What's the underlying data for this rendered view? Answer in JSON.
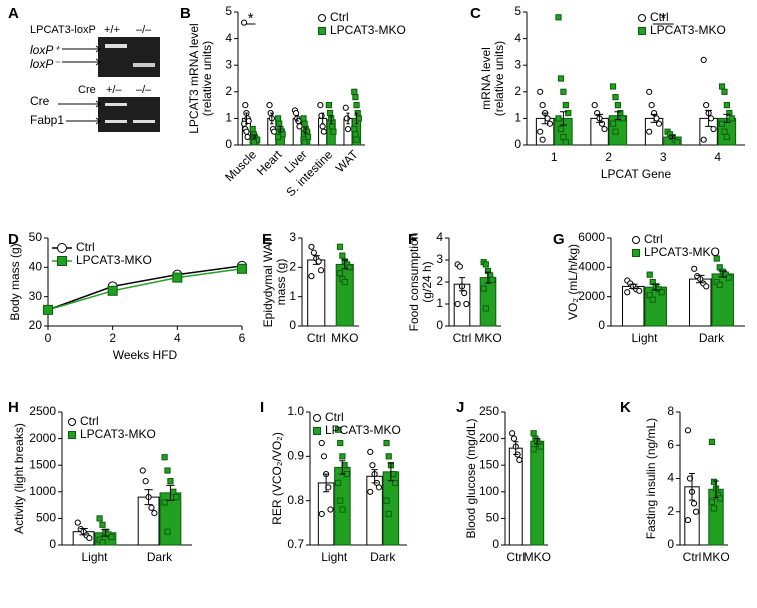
{
  "gel": {
    "label": "A",
    "header1": "LPCAT3-loxP",
    "lanes1": [
      "+/+",
      "–/–"
    ],
    "bands1": [
      "loxP⁺",
      "loxP⁻"
    ],
    "header2": "Cre",
    "lanes2": [
      "+/–",
      "–/–"
    ],
    "bands2": [
      "Cre",
      "Fabp1"
    ]
  },
  "chart_data": [
    {
      "type": "bar",
      "label": "B",
      "ylabel": [
        "LPCAT3 mRNA level",
        "(relative units)"
      ],
      "categories": [
        "Muscle",
        "Heart",
        "Liver",
        "S. intestine",
        "WAT"
      ],
      "xtick_rotation": 45,
      "ylim": [
        0,
        5
      ],
      "yticks": [
        0,
        1,
        2,
        3,
        4,
        5
      ],
      "legend": "upper right",
      "annotations": [
        {
          "text": "*",
          "category": 0
        }
      ],
      "series": [
        {
          "name": "Ctrl",
          "color": "#ffffff",
          "marker": "circle",
          "values": [
            1.0,
            1.0,
            1.0,
            1.0,
            1.0
          ],
          "errors": [
            0.2,
            0.2,
            0.1,
            0.2,
            0.2
          ],
          "points": [
            [
              4.6,
              1.5,
              1.2,
              1.0,
              0.9,
              0.8,
              0.6,
              0.5,
              0.3
            ],
            [
              1.5,
              1.2,
              1.0,
              0.6,
              0.5
            ],
            [
              1.3,
              1.2,
              1.0,
              0.9,
              0.7
            ],
            [
              1.5,
              1.1,
              0.7,
              0.5
            ],
            [
              1.4,
              1.0,
              0.6
            ]
          ]
        },
        {
          "name": "LPCAT3-MKO",
          "color": "#22a022",
          "marker": "square",
          "values": [
            0.3,
            0.6,
            0.55,
            0.95,
            1.0
          ],
          "errors": [
            0.05,
            0.1,
            0.1,
            0.15,
            0.2
          ],
          "points": [
            [
              0.6,
              0.4,
              0.3,
              0.2,
              0.2,
              0.1,
              0.1
            ],
            [
              1.0,
              0.8,
              0.6,
              0.5,
              0.4,
              0.3
            ],
            [
              1.0,
              0.8,
              0.6,
              0.5,
              0.3,
              0.2,
              0.1
            ],
            [
              1.5,
              1.2,
              1.0,
              0.7,
              0.5
            ],
            [
              2.0,
              1.8,
              1.5,
              1.2,
              1.0,
              0.6,
              0.4,
              0.2
            ]
          ]
        }
      ]
    },
    {
      "type": "bar",
      "label": "C",
      "ylabel": [
        "mRNA level",
        "(relative units)"
      ],
      "xlabel": "LPCAT Gene",
      "categories": [
        "1",
        "2",
        "3",
        "4"
      ],
      "ylim": [
        0,
        5
      ],
      "yticks": [
        0,
        1,
        2,
        3,
        4,
        5
      ],
      "legend": "upper right",
      "annotations": [
        {
          "text": "*",
          "category": 2
        }
      ],
      "series": [
        {
          "name": "Ctrl",
          "color": "#ffffff",
          "marker": "circle",
          "values": [
            1.0,
            1.0,
            1.0,
            1.0
          ],
          "errors": [
            0.2,
            0.15,
            0.15,
            0.3
          ],
          "points": [
            [
              2.0,
              1.5,
              1.2,
              1.0,
              0.8,
              0.5,
              0.2
            ],
            [
              1.5,
              1.2,
              1.0,
              0.8,
              0.6
            ],
            [
              2.0,
              1.5,
              1.2,
              1.0,
              0.8,
              0.5
            ],
            [
              3.2,
              1.5,
              1.2,
              1.0,
              0.6,
              0.2
            ]
          ]
        },
        {
          "name": "LPCAT3-MKO",
          "color": "#22a022",
          "marker": "square",
          "values": [
            1.0,
            1.1,
            0.3,
            1.0
          ],
          "errors": [
            0.25,
            0.15,
            0.05,
            0.15
          ],
          "points": [
            [
              4.8,
              2.5,
              2.0,
              1.5,
              1.2,
              1.0,
              0.6,
              0.3,
              0.1
            ],
            [
              2.2,
              1.8,
              1.5,
              1.2,
              1.0,
              0.8,
              0.5
            ],
            [
              0.5,
              0.4,
              0.3,
              0.2,
              0.1
            ],
            [
              2.2,
              2.0,
              1.5,
              1.2,
              1.0,
              0.8,
              0.5,
              0.3
            ]
          ]
        }
      ]
    },
    {
      "type": "line",
      "label": "D",
      "ylabel": [
        "Body mass (g)"
      ],
      "xlabel": "Weeks HFD",
      "x": [
        0,
        2,
        4,
        6
      ],
      "xlim": [
        0,
        6
      ],
      "xticks": [
        0,
        2,
        4,
        6
      ],
      "ylim": [
        20,
        50
      ],
      "yticks": [
        20,
        30,
        40,
        50
      ],
      "legend": "upper left",
      "series": [
        {
          "name": "Ctrl",
          "color": "#000000",
          "marker": "circle",
          "values": [
            25.5,
            33.5,
            37.5,
            40.5
          ]
        },
        {
          "name": "LPCAT3-MKO",
          "color": "#22a022",
          "marker": "square",
          "values": [
            25.5,
            32,
            36.5,
            39.5
          ]
        }
      ]
    },
    {
      "type": "bar",
      "label": "E",
      "ylabel": [
        "Epidydymal WAT",
        "mass (g)"
      ],
      "categories": [
        "Ctrl",
        "MKO"
      ],
      "ylim": [
        0,
        3
      ],
      "yticks": [
        0,
        1,
        2,
        3
      ],
      "colors": [
        "#ffffff",
        "#22a022"
      ],
      "markers": [
        "circle",
        "square"
      ],
      "values": [
        2.25,
        2.1
      ],
      "errors": [
        0.15,
        0.15
      ],
      "points": [
        [
          2.7,
          2.5,
          2.3,
          2.2,
          1.9,
          1.7
        ],
        [
          2.7,
          2.4,
          2.2,
          2.1,
          2.0,
          1.8,
          1.6,
          1.5
        ]
      ]
    },
    {
      "type": "bar",
      "label": "F",
      "ylabel": [
        "Food consumption",
        "(g/24 h)"
      ],
      "categories": [
        "Ctrl",
        "MKO"
      ],
      "ylim": [
        0,
        4
      ],
      "yticks": [
        0,
        1,
        2,
        3,
        4
      ],
      "colors": [
        "#ffffff",
        "#22a022"
      ],
      "markers": [
        "circle",
        "square"
      ],
      "values": [
        1.9,
        2.2
      ],
      "errors": [
        0.3,
        0.25
      ],
      "points": [
        [
          2.8,
          2.7,
          1.8,
          1.5,
          1.0,
          1.0
        ],
        [
          2.9,
          2.8,
          2.5,
          2.3,
          2.1,
          1.7,
          0.8
        ]
      ]
    },
    {
      "type": "bar",
      "label": "G",
      "ylabel": [
        "VO₂ (mL/h/kg)"
      ],
      "categories": [
        "Light",
        "Dark"
      ],
      "ylim": [
        0,
        6000
      ],
      "yticks": [
        0,
        2000,
        4000,
        6000
      ],
      "legend": "upper left",
      "series": [
        {
          "name": "Ctrl",
          "color": "#ffffff",
          "marker": "circle",
          "values": [
            2700,
            3200
          ],
          "errors": [
            150,
            250
          ],
          "points": [
            [
              3100,
              2900,
              2700,
              2500,
              2400,
              2300
            ],
            [
              3900,
              3400,
              3200,
              2900,
              2700
            ]
          ]
        },
        {
          "name": "LPCAT3-MKO",
          "color": "#22a022",
          "marker": "square",
          "values": [
            2650,
            3550
          ],
          "errors": [
            200,
            200
          ],
          "points": [
            [
              3500,
              3000,
              2700,
              2500,
              2300,
              2100,
              1800
            ],
            [
              4600,
              4000,
              3700,
              3500,
              3300,
              3000,
              2800
            ]
          ]
        }
      ]
    },
    {
      "type": "bar",
      "label": "H",
      "ylabel": [
        "Activity (light breaks)"
      ],
      "categories": [
        "Light",
        "Dark"
      ],
      "ylim": [
        0,
        2500
      ],
      "yticks": [
        0,
        500,
        1000,
        1500,
        2000,
        2500
      ],
      "legend": "upper left",
      "series": [
        {
          "name": "Ctrl",
          "color": "#ffffff",
          "marker": "circle",
          "values": [
            250,
            900
          ],
          "errors": [
            60,
            140
          ],
          "points": [
            [
              420,
              300,
              250,
              180,
              130
            ],
            [
              1400,
              1200,
              900,
              700,
              600
            ]
          ]
        },
        {
          "name": "LPCAT3-MKO",
          "color": "#22a022",
          "marker": "square",
          "values": [
            230,
            980
          ],
          "errors": [
            60,
            140
          ],
          "points": [
            [
              500,
              380,
              250,
              200,
              150,
              100,
              50
            ],
            [
              1650,
              1400,
              1200,
              1000,
              900,
              800,
              250
            ]
          ]
        }
      ]
    },
    {
      "type": "bar",
      "label": "I",
      "ylabel": [
        "RER (VCO₂/VO₂)"
      ],
      "categories": [
        "Light",
        "Dark"
      ],
      "ylim": [
        0.7,
        1
      ],
      "yticks": [
        0.7,
        0.8,
        0.9,
        {
          "value": 1,
          "label": "1.0"
        }
      ],
      "legend": "upper left",
      "series": [
        {
          "name": "Ctrl",
          "color": "#ffffff",
          "marker": "circle",
          "values": [
            0.84,
            0.855
          ],
          "errors": [
            0.02,
            0.015
          ],
          "points": [
            [
              0.93,
              0.9,
              0.86,
              0.83,
              0.78,
              0.77
            ],
            [
              0.91,
              0.88,
              0.86,
              0.84,
              0.83,
              0.82
            ]
          ]
        },
        {
          "name": "LPCAT3-MKO",
          "color": "#22a022",
          "marker": "square",
          "values": [
            0.875,
            0.865
          ],
          "errors": [
            0.015,
            0.02
          ],
          "points": [
            [
              0.96,
              0.93,
              0.9,
              0.88,
              0.86,
              0.84,
              0.8,
              0.78
            ],
            [
              0.93,
              0.9,
              0.88,
              0.86,
              0.84,
              0.8,
              0.77
            ]
          ]
        }
      ]
    },
    {
      "type": "bar",
      "label": "J",
      "ylabel": [
        "Blood glucose (mg/dL)"
      ],
      "categories": [
        "Ctrl",
        "MKO"
      ],
      "ylim": [
        0,
        250
      ],
      "yticks": [
        0,
        50,
        100,
        150,
        200,
        250
      ],
      "colors": [
        "#ffffff",
        "#22a022"
      ],
      "markers": [
        "circle",
        "square"
      ],
      "values": [
        182,
        195
      ],
      "errors": [
        12,
        5
      ],
      "points": [
        [
          210,
          200,
          185,
          170,
          160
        ],
        [
          210,
          200,
          195,
          190,
          185,
          180
        ]
      ]
    },
    {
      "type": "bar",
      "label": "K",
      "ylabel": [
        "Fasting insulin (ng/mL)"
      ],
      "categories": [
        "Ctrl",
        "MKO"
      ],
      "ylim": [
        0,
        8
      ],
      "yticks": [
        0,
        2,
        4,
        6,
        8
      ],
      "colors": [
        "#ffffff",
        "#22a022"
      ],
      "markers": [
        "circle",
        "square"
      ],
      "values": [
        3.5,
        3.35
      ],
      "errors": [
        0.8,
        0.5
      ],
      "points": [
        [
          6.9,
          4.0,
          3.2,
          2.5,
          2.0,
          1.5
        ],
        [
          6.2,
          3.8,
          3.4,
          3.0,
          2.8,
          2.6,
          2.2
        ]
      ]
    }
  ]
}
